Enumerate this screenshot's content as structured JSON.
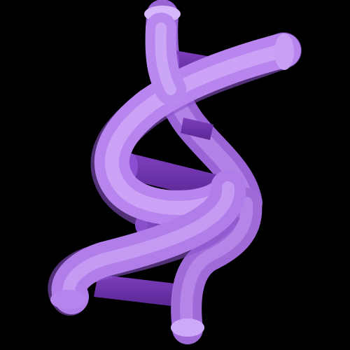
{
  "image": {
    "icon": "dna-double-helix-icon",
    "background_color": "#000000",
    "strand_color": "#bf8ff0",
    "strand_highlight_color": "#e3c6ff",
    "strand_shadow_color": "#8a52c9",
    "rung_color": "#7e3fbc",
    "rung_shadow_color": "#5a2694"
  }
}
